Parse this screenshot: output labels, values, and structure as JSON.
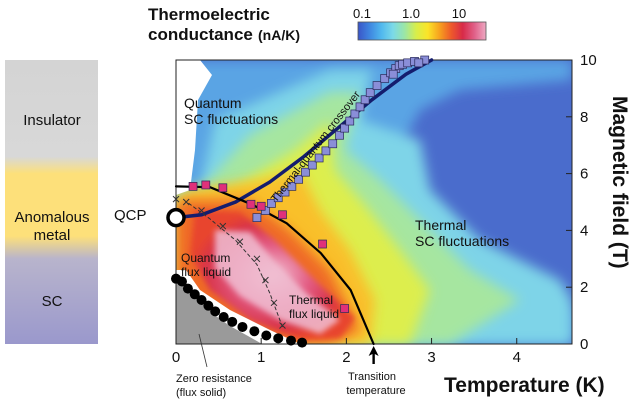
{
  "chart_data": {
    "type": "heatmap",
    "title": "Thermoelectric conductance (nA/K)",
    "colorbar": {
      "label_line1": "Thermoelectric",
      "label_line2": "conductance",
      "unit": "(nA/K)",
      "ticks": [
        "0.1",
        "1.0",
        "10"
      ],
      "colors": [
        "#3a55c8",
        "#3f86e0",
        "#50b8ee",
        "#7bd9e8",
        "#9be6a6",
        "#d8ee4a",
        "#fbe428",
        "#f7a21e",
        "#ee5a2a",
        "#d82a48",
        "#e06088",
        "#eeaac4"
      ]
    },
    "xlabel": "Temperature (K)",
    "ylabel": "Magnetic field (T)",
    "xlim": [
      0,
      4.5
    ],
    "ylim": [
      0,
      10
    ],
    "x_ticks": [
      0,
      1,
      2,
      3,
      4
    ],
    "y_ticks": [
      0,
      2,
      4,
      6,
      8,
      10
    ],
    "series": [
      {
        "name": "onset",
        "marker": "square",
        "color": "#8a8ed8",
        "x": [
          0.95,
          1.05,
          1.12,
          1.2,
          1.28,
          1.36,
          1.44,
          1.52,
          1.6,
          1.68,
          1.76,
          1.84,
          1.92,
          1.98,
          2.04,
          2.1,
          2.16,
          2.22,
          2.28,
          2.36,
          2.45,
          2.52,
          2.58,
          2.62,
          2.66,
          2.72,
          2.8,
          2.92,
          2.55,
          2.85
        ],
        "y": [
          4.45,
          4.7,
          4.95,
          5.15,
          5.35,
          5.55,
          5.8,
          6.05,
          6.3,
          6.55,
          6.8,
          7.05,
          7.35,
          7.6,
          7.85,
          8.1,
          8.35,
          8.6,
          8.85,
          9.1,
          9.35,
          9.55,
          9.7,
          9.8,
          9.85,
          9.9,
          9.95,
          10.0,
          9.5,
          9.9
        ]
      },
      {
        "name": "transition",
        "marker": "square",
        "color": "#e0307a",
        "x": [
          0.2,
          0.35,
          0.55,
          0.88,
          1.0,
          1.25,
          1.72,
          1.98
        ],
        "y": [
          5.55,
          5.6,
          5.5,
          4.92,
          4.85,
          4.55,
          3.52,
          1.25
        ]
      },
      {
        "name": "flux_liquid",
        "marker": "cross",
        "color": "#333333",
        "x": [
          0.0,
          0.12,
          0.3,
          0.55,
          0.75,
          0.95,
          1.05,
          1.15,
          1.25
        ],
        "y": [
          5.1,
          5.0,
          4.7,
          4.15,
          3.6,
          3.0,
          2.25,
          1.45,
          0.65
        ]
      },
      {
        "name": "zero_resistance",
        "marker": "circle",
        "color": "#000000",
        "x": [
          0.0,
          0.07,
          0.14,
          0.22,
          0.3,
          0.38,
          0.46,
          0.56,
          0.66,
          0.78,
          0.92,
          1.06,
          1.2,
          1.35,
          1.48
        ],
        "y": [
          2.3,
          2.2,
          1.95,
          1.75,
          1.55,
          1.35,
          1.15,
          0.95,
          0.78,
          0.6,
          0.45,
          0.3,
          0.2,
          0.12,
          0.05
        ]
      }
    ],
    "curves": [
      {
        "name": "thermal_quantum_crossover",
        "x": [
          0.0,
          0.3,
          0.7,
          1.1,
          1.5,
          1.9,
          2.3,
          2.7,
          3.0
        ],
        "y": [
          4.45,
          4.55,
          5.0,
          5.7,
          6.6,
          7.6,
          8.6,
          9.5,
          10.0
        ]
      },
      {
        "name": "transition_line",
        "x": [
          0.0,
          0.4,
          0.9,
          1.3,
          1.7,
          2.05,
          2.32
        ],
        "y": [
          5.55,
          5.52,
          4.9,
          4.25,
          3.2,
          1.9,
          0.0
        ]
      },
      {
        "name": "flux_liquid_line",
        "x": [
          0.15,
          0.4,
          0.7,
          0.95,
          1.1,
          1.25
        ],
        "y": [
          4.95,
          4.4,
          3.65,
          2.8,
          1.8,
          0.6
        ]
      }
    ],
    "qcp": {
      "x": 0.0,
      "y": 4.45,
      "label": "QCP"
    },
    "transition_temperature": 2.32,
    "annotations": [
      {
        "id": "quantum-sc",
        "lines": [
          "Quantum",
          "SC fluctuations"
        ]
      },
      {
        "id": "thermal-sc",
        "lines": [
          "Thermal",
          "SC fluctuations"
        ]
      },
      {
        "id": "quantum-flux",
        "lines": [
          "Quantum",
          "flux liquid"
        ]
      },
      {
        "id": "thermal-flux",
        "lines": [
          "Thermal",
          "flux liquid"
        ]
      },
      {
        "id": "crossover",
        "lines": [
          "Thermal-quantum crossover"
        ]
      },
      {
        "id": "zero-res",
        "lines": [
          "Zero resistance",
          "(flux solid)"
        ]
      },
      {
        "id": "transition",
        "lines": [
          "Transition",
          "temperature"
        ]
      }
    ],
    "phase_bar": [
      {
        "label_lines": [
          "Insulator"
        ],
        "color": "#d2d2d2",
        "from": 6.9,
        "to": 10.0
      },
      {
        "label_lines": [
          "Anomalous",
          "metal"
        ],
        "color": "#fde07a",
        "from": 3.7,
        "to": 6.9
      },
      {
        "label_lines": [
          "SC"
        ],
        "color": "#9e9ccc",
        "from": 0.0,
        "to": 3.7
      }
    ]
  }
}
